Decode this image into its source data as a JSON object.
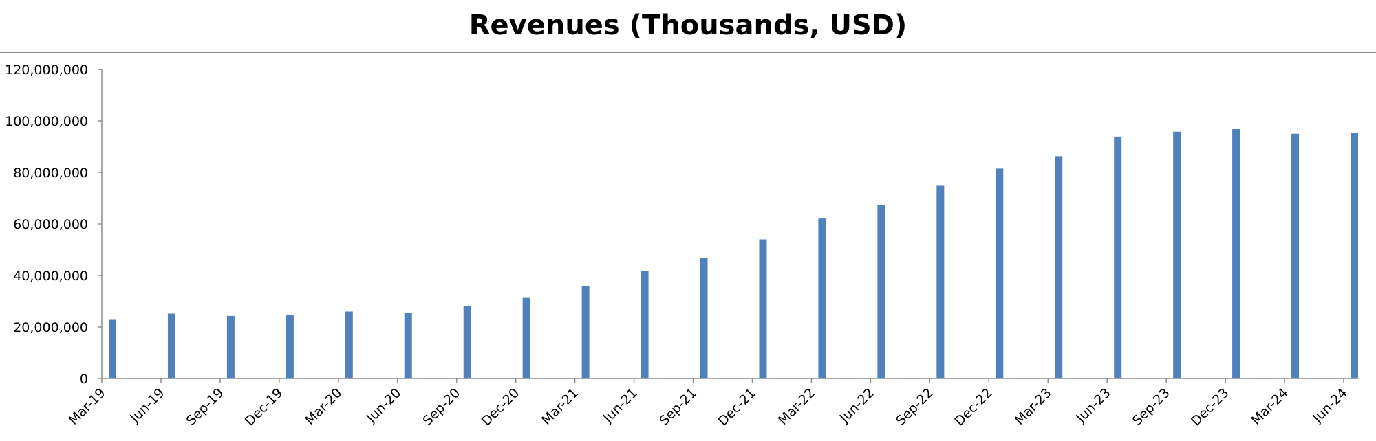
{
  "chart_data": {
    "type": "bar",
    "title": "Revenues (Thousands, USD)",
    "xlabel": "",
    "ylabel": "",
    "categories": [
      "Mar-19",
      "Jun-19",
      "Sep-19",
      "Dec-19",
      "Mar-20",
      "Jun-20",
      "Sep-20",
      "Dec-20",
      "Mar-21",
      "Jun-21",
      "Sep-21",
      "Dec-21",
      "Mar-22",
      "Jun-22",
      "Sep-22",
      "Dec-22",
      "Mar-23",
      "Jun-23",
      "Sep-23",
      "Dec-23",
      "Mar-24",
      "Jun-24"
    ],
    "values": [
      22800000,
      25200000,
      24300000,
      24700000,
      26000000,
      25600000,
      28000000,
      31300000,
      36000000,
      41700000,
      46900000,
      54000000,
      62100000,
      67400000,
      74800000,
      81500000,
      86300000,
      93900000,
      95800000,
      96800000,
      95000000,
      95300000
    ],
    "ylim": [
      0,
      120000000
    ],
    "yticks": [
      "0",
      "20,000,000",
      "40,000,000",
      "60,000,000",
      "80,000,000",
      "100,000,000",
      "120,000,000"
    ],
    "grid": false,
    "legend": "none",
    "bar_color": "#4f81bd"
  }
}
